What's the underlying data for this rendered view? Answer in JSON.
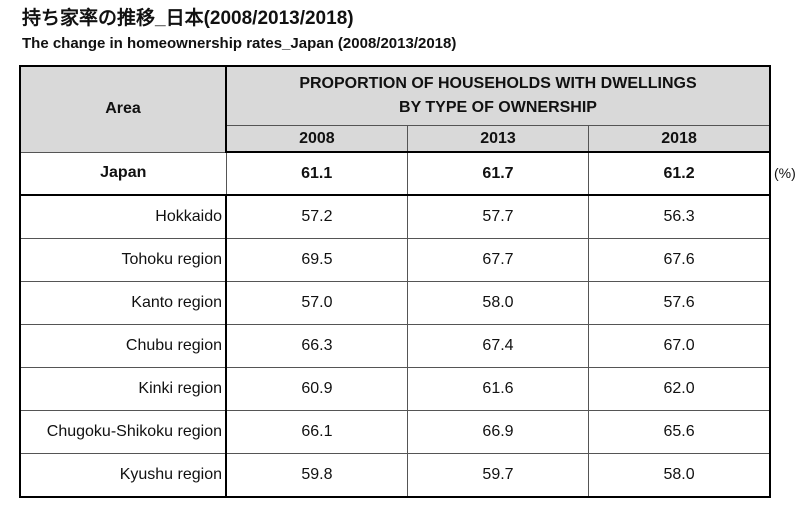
{
  "header": {
    "title": "持ち家率の推移_日本(2008/2013/2018)",
    "subtitle": "The change in homeownership rates_Japan (2008/2013/2018)"
  },
  "table": {
    "area_header": "Area",
    "group_header": [
      "PROPORTION OF HOUSEHOLDS WITH DWELLINGS",
      "BY TYPE OF OWNERSHIP"
    ],
    "columns": [
      "2008",
      "2013",
      "2018"
    ],
    "rows": [
      [
        "Japan",
        "61.1",
        "61.7",
        "61.2"
      ],
      [
        "Hokkaido",
        "57.2",
        "57.7",
        "56.3"
      ],
      [
        "Tohoku region",
        "69.5",
        "67.7",
        "67.6"
      ],
      [
        "Kanto region",
        "57.0",
        "58.0",
        "57.6"
      ],
      [
        "Chubu region",
        "66.3",
        "67.4",
        "67.0"
      ],
      [
        "Kinki region",
        "60.9",
        "61.6",
        "62.0"
      ],
      [
        "Chugoku-Shikoku region",
        "66.1",
        "66.9",
        "65.6"
      ],
      [
        "Kyushu region",
        "59.8",
        "59.7",
        "58.0"
      ]
    ],
    "unit": "(%)"
  }
}
